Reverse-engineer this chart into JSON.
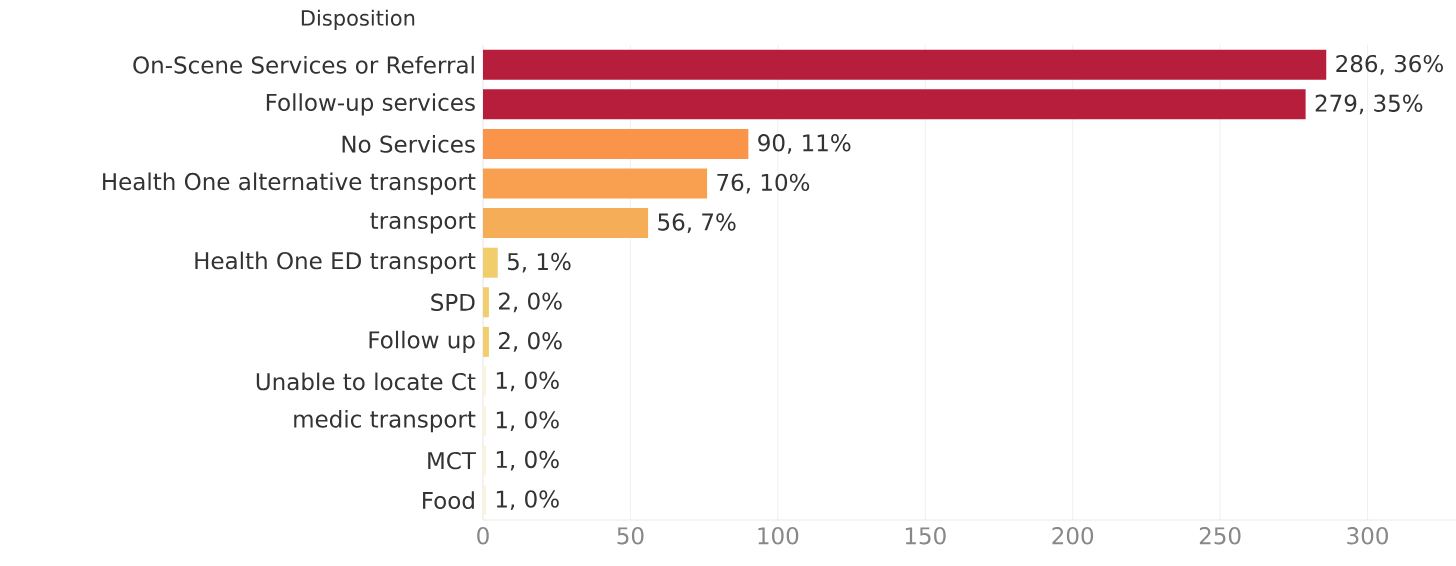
{
  "chart_data": {
    "type": "bar",
    "orientation": "horizontal",
    "ylabel": "Disposition",
    "categories": [
      "On-Scene Services or Referral",
      "Follow-up services",
      "No Services",
      "Health One alternative transport",
      "transport",
      "Health One ED transport",
      "SPD",
      "Follow up",
      "Unable to locate Ct",
      "medic transport",
      "MCT",
      "Food"
    ],
    "values": [
      286,
      279,
      90,
      76,
      56,
      5,
      2,
      2,
      1,
      1,
      1,
      1
    ],
    "value_labels": [
      "286, 36%",
      "279, 35%",
      "90, 11%",
      "76, 10%",
      "56, 7%",
      "5, 1%",
      "2, 0%",
      "2, 0%",
      "1, 0%",
      "1, 0%",
      "1, 0%",
      "1, 0%"
    ],
    "colors": [
      "#b71e3c",
      "#b71e3c",
      "#f9944a",
      "#f8a050",
      "#f6ad58",
      "#f2cd6b",
      "#f2cd6b",
      "#f2cd6b",
      "#fbf3dc",
      "#fbf3dc",
      "#fbf3dc",
      "#fbf3dc"
    ],
    "xlim": [
      0,
      330
    ],
    "xticks": [
      0,
      50,
      100,
      150,
      200,
      250,
      300
    ],
    "grid": "x"
  }
}
